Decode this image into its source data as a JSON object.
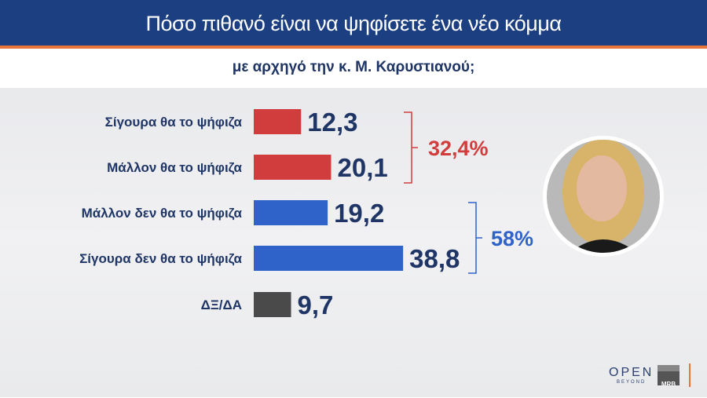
{
  "header": {
    "title": "Πόσο πιθανό είναι να ψηφίσετε ένα νέο κόμμα",
    "subtitle": "με αρχηγό την κ. Μ. Καρυστιανού;"
  },
  "chart_data": {
    "type": "bar",
    "orientation": "horizontal",
    "title": "Πόσο πιθανό είναι να ψηφίσετε ένα νέο κόμμα",
    "subtitle": "με αρχηγό την κ. Μ. Καρυστιανού;",
    "categories": [
      "Σίγουρα θα το ψήφιζα",
      "Μάλλον θα το ψήφιζα",
      "Μάλλον δεν θα το ψήφιζα",
      "Σίγουρα δεν θα το ψήφιζα",
      "ΔΞ/ΔΑ"
    ],
    "values": [
      12.3,
      20.1,
      19.2,
      38.8,
      9.7
    ],
    "value_labels": [
      "12,3",
      "20,1",
      "19,2",
      "38,8",
      "9,7"
    ],
    "colors": [
      "#d13c3c",
      "#d13c3c",
      "#2f63c9",
      "#2f63c9",
      "#4a4a4a"
    ],
    "groups": [
      {
        "label": "32,4%",
        "members": [
          0,
          1
        ],
        "color": "#d13c3c"
      },
      {
        "label": "58%",
        "members": [
          2,
          3
        ],
        "color": "#2f63c9"
      }
    ],
    "grid": false
  },
  "branding": {
    "logo": "OPEN",
    "logo_sub": "BEYOND",
    "source": "MRB"
  }
}
